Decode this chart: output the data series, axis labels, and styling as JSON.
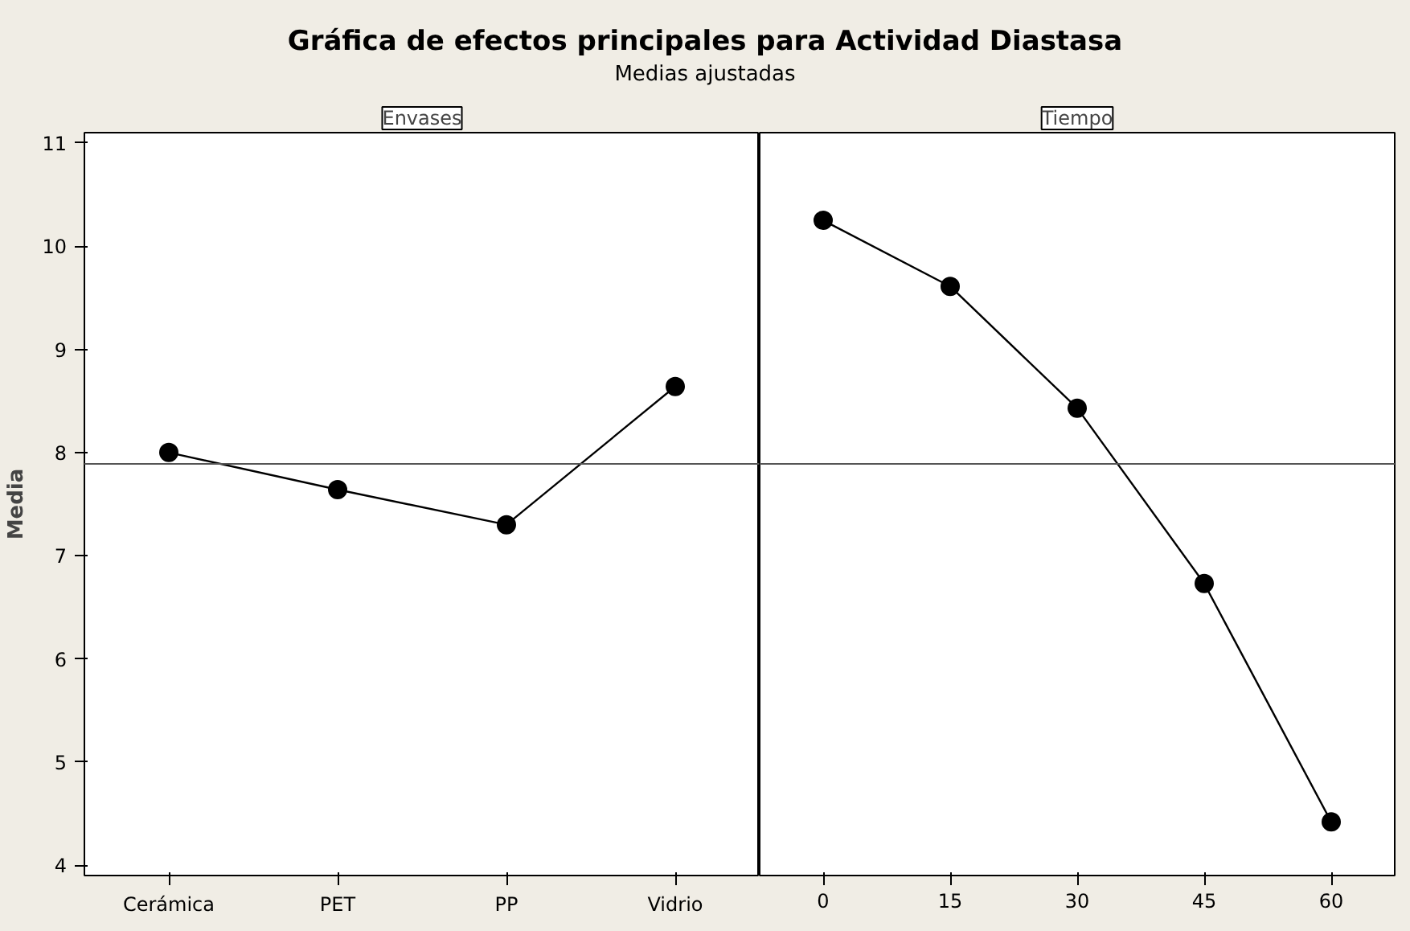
{
  "chart_data": [
    {
      "type": "line",
      "title": "Gráfica de efectos principales para Actividad Diastasa",
      "subtitle": "Medias ajustadas",
      "annotations": [
        "Envases"
      ],
      "ylabel": "Media",
      "categories": [
        "Cerámica",
        "PET",
        "PP",
        "Vidrio"
      ],
      "series": [
        {
          "color": "#000000",
          "values": [
            8.0,
            7.64,
            7.3,
            8.64
          ]
        }
      ],
      "marker": "circle",
      "ylim": [
        3.9,
        11.1
      ],
      "yticks": [
        4,
        5,
        6,
        7,
        8,
        9,
        10,
        11
      ],
      "ref_lines": [
        {
          "axis": "y",
          "value": 7.89,
          "color": "#555555"
        }
      ]
    },
    {
      "type": "line",
      "annotations": [
        "Tiempo"
      ],
      "categories": [
        "0",
        "15",
        "30",
        "45",
        "60"
      ],
      "series": [
        {
          "color": "#000000",
          "values": [
            10.25,
            9.61,
            8.43,
            6.73,
            4.42
          ]
        }
      ],
      "marker": "circle",
      "ylim": [
        3.9,
        11.1
      ],
      "yticks": [
        4,
        5,
        6,
        7,
        8,
        9,
        10,
        11
      ],
      "tick_labels": "x",
      "ref_lines": [
        {
          "axis": "y",
          "value": 7.89,
          "color": "#555555"
        }
      ]
    }
  ]
}
